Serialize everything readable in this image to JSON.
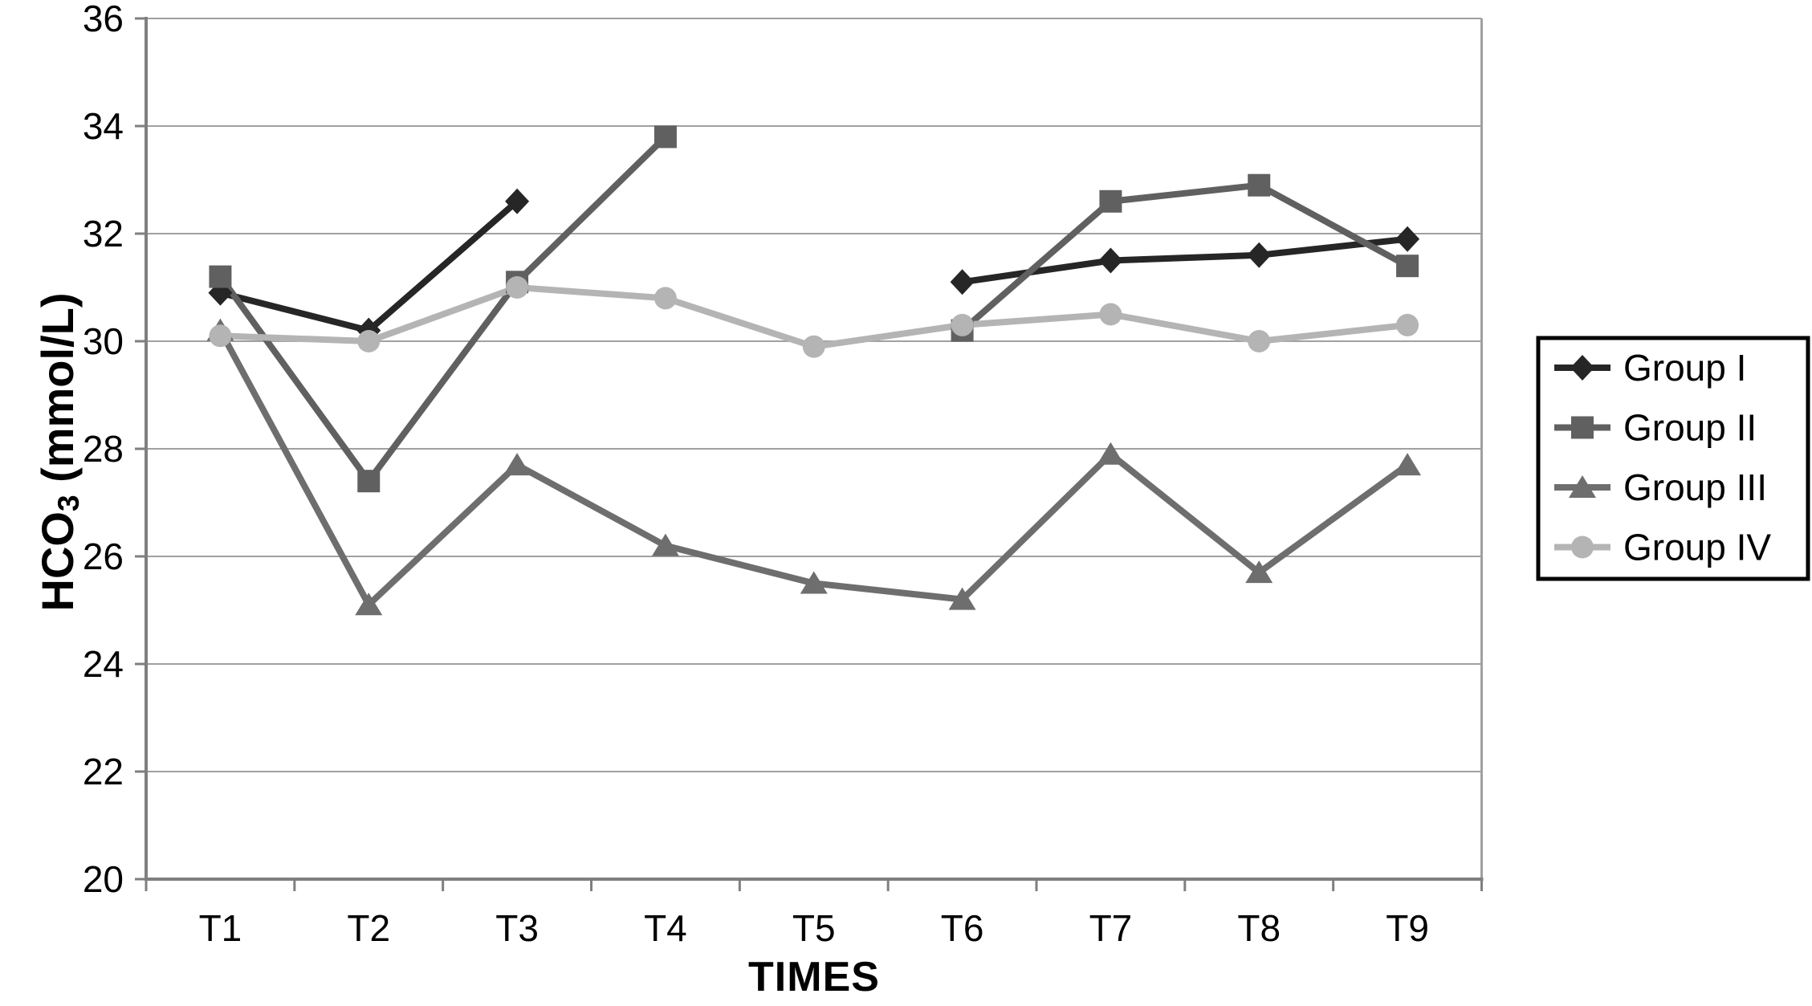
{
  "figure": {
    "ylabel_prefix": "HCO",
    "ylabel_sub": "3",
    "ylabel_suffix": " (mmol/L)",
    "xlabel": "TIMES"
  },
  "chart_data": {
    "type": "line",
    "title": "",
    "xlabel": "TIMES",
    "ylabel": "HCO3 (mmol/L)",
    "categories": [
      "T1",
      "T2",
      "T3",
      "T4",
      "T5",
      "T6",
      "T7",
      "T8",
      "T9"
    ],
    "ylim": [
      20,
      36
    ],
    "yticks": [
      20,
      22,
      24,
      26,
      28,
      30,
      32,
      34,
      36
    ],
    "grid": true,
    "legend_position": "right",
    "series": [
      {
        "name": "Group I",
        "marker": "diamond",
        "color": "#262626",
        "values": [
          30.9,
          30.2,
          32.6,
          null,
          null,
          31.1,
          31.5,
          31.6,
          31.9
        ]
      },
      {
        "name": "Group II",
        "marker": "square",
        "color": "#606060",
        "values": [
          31.2,
          27.4,
          31.1,
          33.8,
          null,
          30.2,
          32.6,
          32.9,
          31.4
        ]
      },
      {
        "name": "Group III",
        "marker": "triangle",
        "color": "#6e6e6e",
        "values": [
          30.2,
          25.1,
          27.7,
          26.2,
          25.5,
          25.2,
          27.9,
          25.7,
          27.7
        ]
      },
      {
        "name": "Group IV",
        "marker": "circle",
        "color": "#b4b4b4",
        "values": [
          30.1,
          30.0,
          31.0,
          30.8,
          29.9,
          30.3,
          30.5,
          30.0,
          30.3
        ]
      }
    ]
  },
  "style": {
    "grid_color": "#a0a0a0",
    "axis_color": "#7f7f7f",
    "text_color": "#000000",
    "legend_border_color": "#000000",
    "background_color": "#ffffff"
  }
}
